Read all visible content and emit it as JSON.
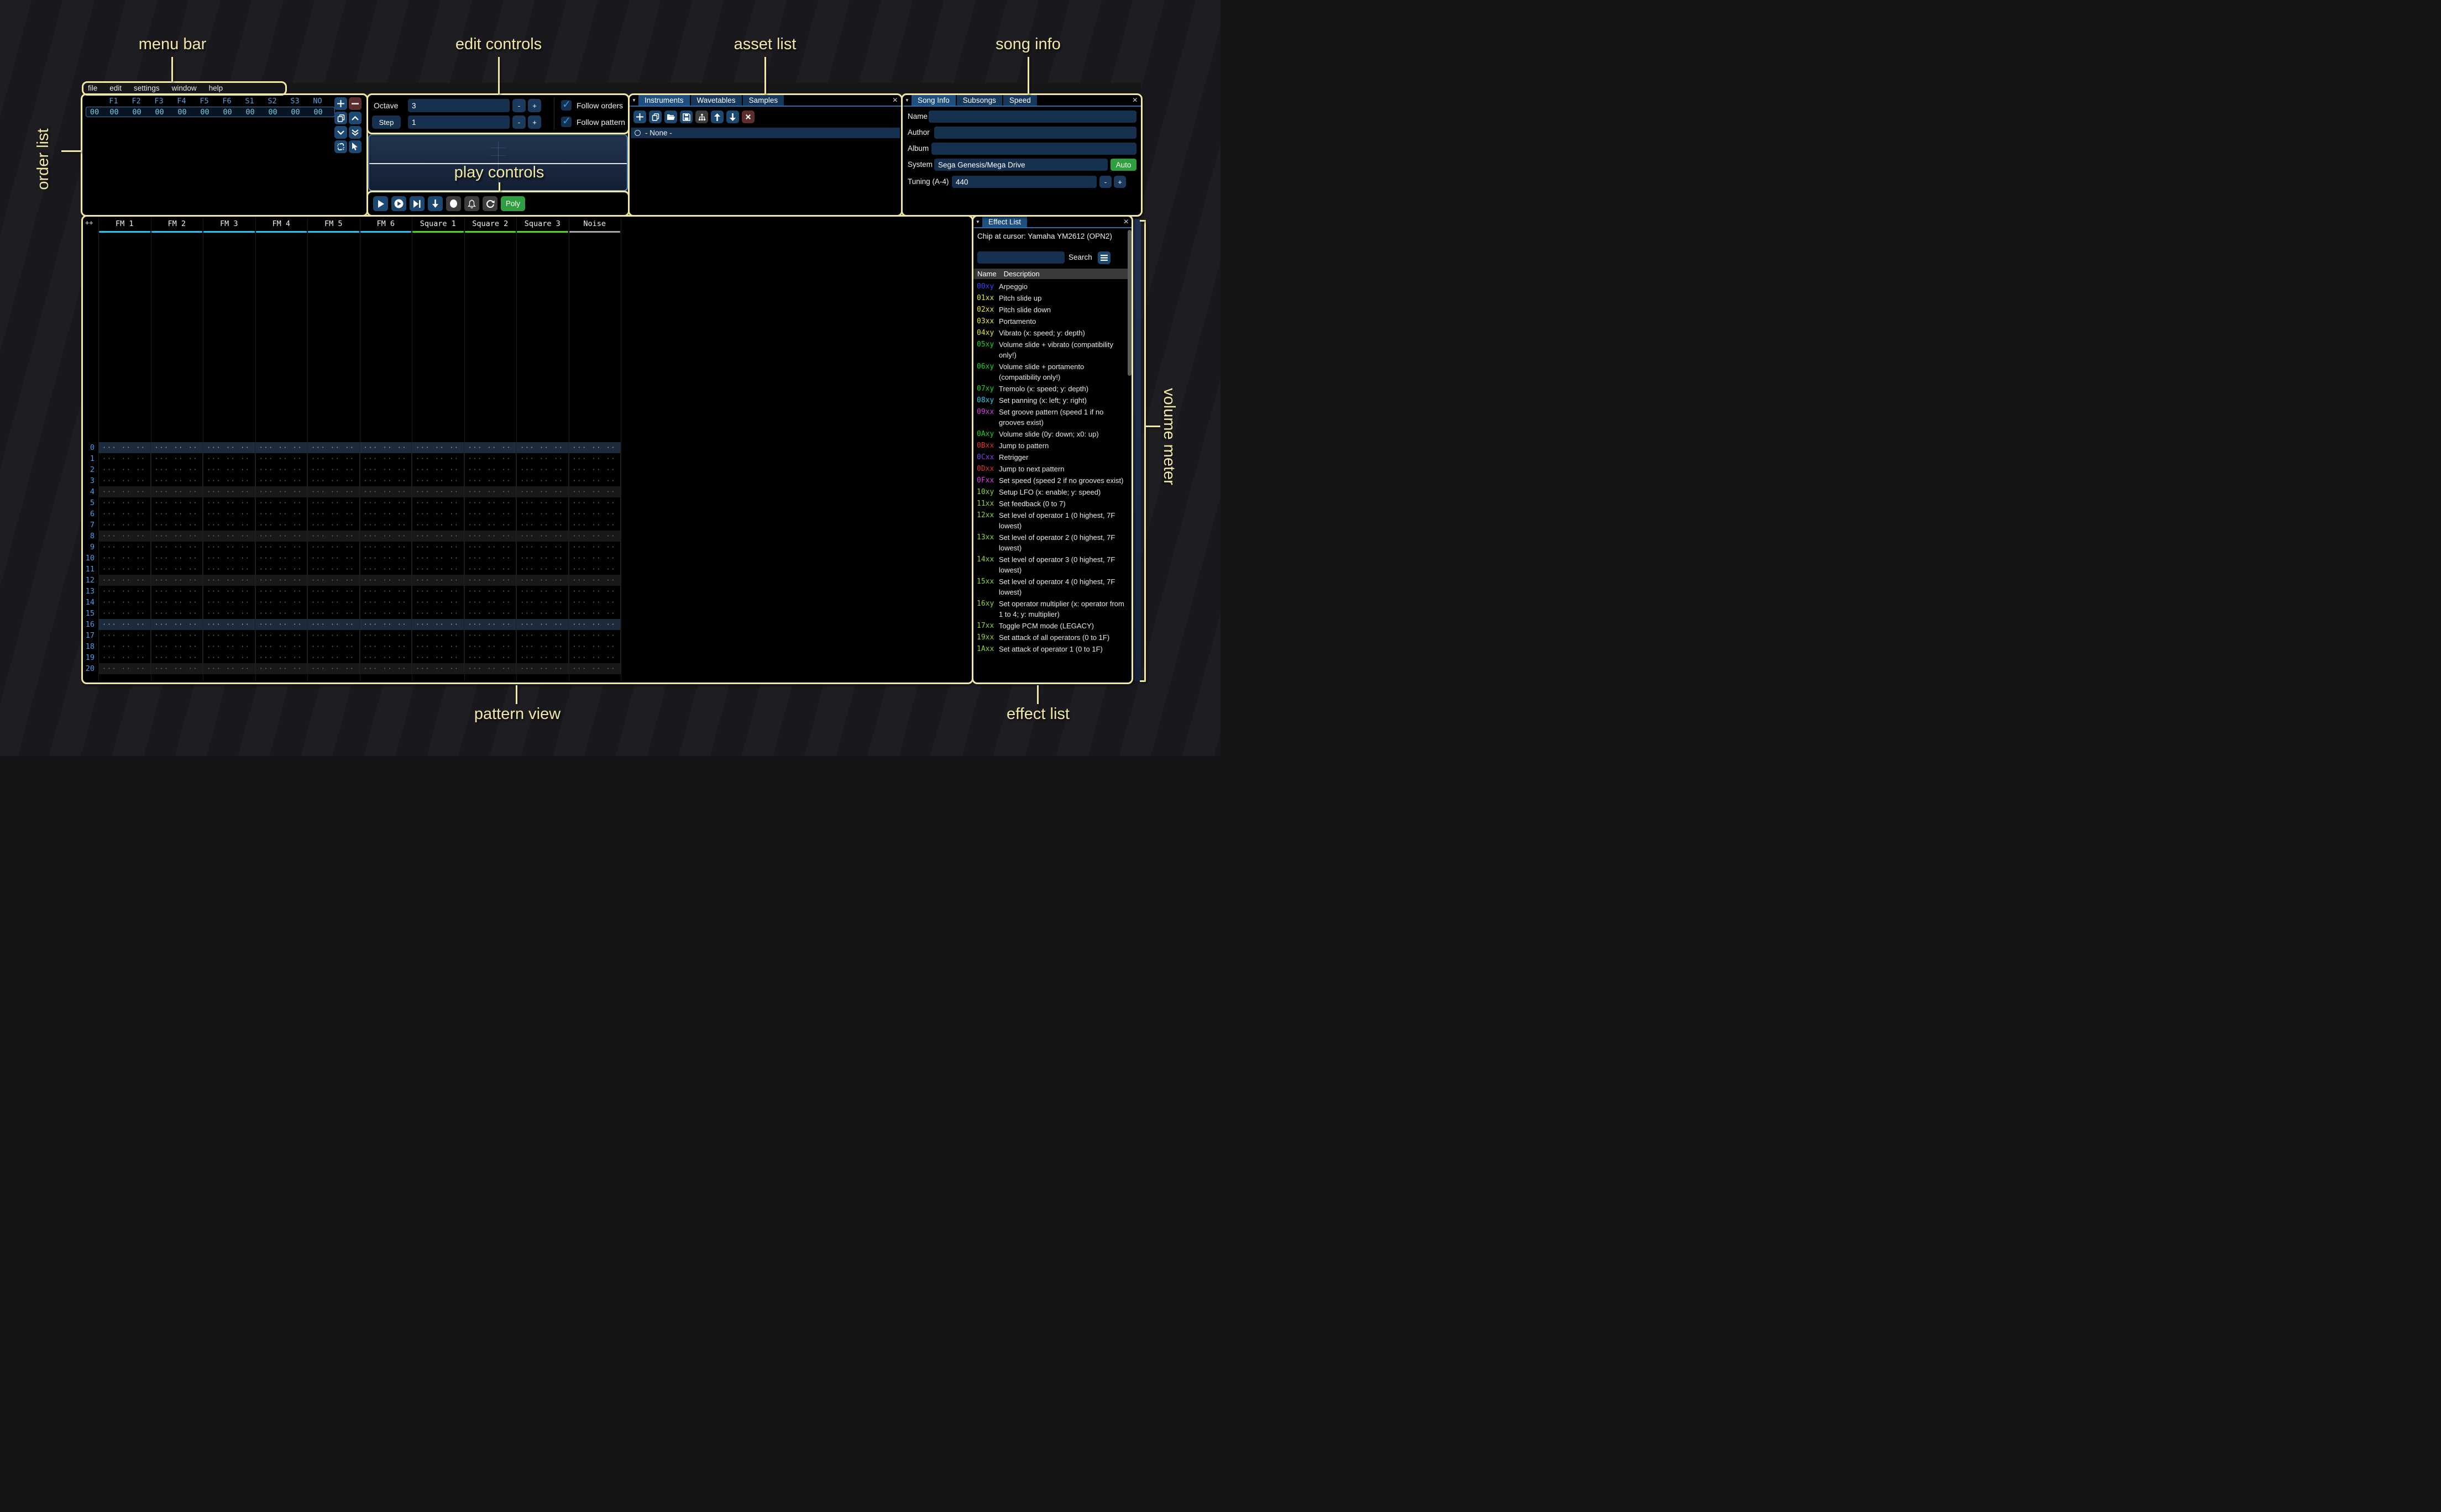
{
  "annotations": {
    "menu_bar": "menu bar",
    "edit_controls": "edit controls",
    "asset_list": "asset list",
    "song_info": "song info",
    "order_list": "order list",
    "play_controls": "play controls",
    "pattern_view": "pattern view",
    "volume_meter": "volume meter",
    "effect_list": "effect list"
  },
  "menu": {
    "items": [
      "file",
      "edit",
      "settings",
      "window",
      "help"
    ]
  },
  "order_list": {
    "columns": [
      "F1",
      "F2",
      "F3",
      "F4",
      "F5",
      "F6",
      "S1",
      "S2",
      "S3",
      "NO"
    ],
    "row_index": "00",
    "row_values": [
      "00",
      "00",
      "00",
      "00",
      "00",
      "00",
      "00",
      "00",
      "00",
      "00"
    ]
  },
  "edit_controls": {
    "octave_label": "Octave",
    "octave_value": "3",
    "step_label": "Step",
    "step_value": "1",
    "minus": "-",
    "plus": "+",
    "follow_orders": "Follow orders",
    "follow_pattern": "Follow pattern"
  },
  "play_controls": {
    "poly_label": "Poly"
  },
  "asset_list": {
    "tabs": [
      "Instruments",
      "Wavetables",
      "Samples"
    ],
    "active_tab": "Instruments",
    "selected_item": "- None -"
  },
  "song_info": {
    "tabs": [
      "Song Info",
      "Subsongs",
      "Speed"
    ],
    "active_tab": "Song Info",
    "name_label": "Name",
    "name_value": "",
    "author_label": "Author",
    "author_value": "",
    "album_label": "Album",
    "album_value": "",
    "system_label": "System",
    "system_value": "Sega Genesis/Mega Drive",
    "auto_label": "Auto",
    "tuning_label": "Tuning (A-4)",
    "tuning_value": "440",
    "minus": "-",
    "plus": "+"
  },
  "pattern_view": {
    "corner": "++",
    "channels": [
      {
        "name": "FM 1",
        "type": "fm"
      },
      {
        "name": "FM 2",
        "type": "fm"
      },
      {
        "name": "FM 3",
        "type": "fm"
      },
      {
        "name": "FM 4",
        "type": "fm"
      },
      {
        "name": "FM 5",
        "type": "fm"
      },
      {
        "name": "FM 6",
        "type": "fm"
      },
      {
        "name": "Square 1",
        "type": "square"
      },
      {
        "name": "Square 2",
        "type": "square"
      },
      {
        "name": "Square 3",
        "type": "square"
      },
      {
        "name": "Noise",
        "type": "noise"
      }
    ],
    "row_count": 21,
    "empty_cell": "··· ·· ·· ····"
  },
  "effect_list": {
    "tab": "Effect List",
    "chip_text": "Chip at cursor: Yamaha YM2612 (OPN2)",
    "search_placeholder": "",
    "search_label": "Search",
    "name_header": "Name",
    "description_header": "Description",
    "effects": [
      {
        "code": "00xy",
        "color": "#3e3eff",
        "desc": "Arpeggio"
      },
      {
        "code": "01xx",
        "color": "#e6e929",
        "desc": "Pitch slide up"
      },
      {
        "code": "02xx",
        "color": "#e6e929",
        "desc": "Pitch slide down"
      },
      {
        "code": "03xx",
        "color": "#e6e929",
        "desc": "Portamento"
      },
      {
        "code": "04xy",
        "color": "#e6e929",
        "desc": "Vibrato (x: speed; y: depth)"
      },
      {
        "code": "05xy",
        "color": "#12d626",
        "desc": "Volume slide + vibrato (compatibility only!)"
      },
      {
        "code": "06xy",
        "color": "#12d626",
        "desc": "Volume slide + portamento (compatibility only!)"
      },
      {
        "code": "07xy",
        "color": "#12d626",
        "desc": "Tremolo (x: speed; y: depth)"
      },
      {
        "code": "08xy",
        "color": "#1fd2e6",
        "desc": "Set panning (x: left; y: right)"
      },
      {
        "code": "09xx",
        "color": "#d93fe0",
        "desc": "Set groove pattern (speed 1 if no grooves exist)"
      },
      {
        "code": "0Axy",
        "color": "#12d626",
        "desc": "Volume slide (0y: down; x0: up)"
      },
      {
        "code": "0Bxx",
        "color": "#e23232",
        "desc": "Jump to pattern"
      },
      {
        "code": "0Cxx",
        "color": "#7e3fe8",
        "desc": "Retrigger"
      },
      {
        "code": "0Dxx",
        "color": "#e23232",
        "desc": "Jump to next pattern"
      },
      {
        "code": "0Fxx",
        "color": "#d93fe0",
        "desc": "Set speed (speed 2 if no grooves exist)"
      },
      {
        "code": "10xy",
        "color": "#8fd32f",
        "desc": "Setup LFO (x: enable; y: speed)"
      },
      {
        "code": "11xx",
        "color": "#8fd32f",
        "desc": "Set feedback (0 to 7)"
      },
      {
        "code": "12xx",
        "color": "#8fd32f",
        "desc": "Set level of operator 1 (0 highest, 7F lowest)"
      },
      {
        "code": "13xx",
        "color": "#8fd32f",
        "desc": "Set level of operator 2 (0 highest, 7F lowest)"
      },
      {
        "code": "14xx",
        "color": "#8fd32f",
        "desc": "Set level of operator 3 (0 highest, 7F lowest)"
      },
      {
        "code": "15xx",
        "color": "#8fd32f",
        "desc": "Set level of operator 4 (0 highest, 7F lowest)"
      },
      {
        "code": "16xy",
        "color": "#8fd32f",
        "desc": "Set operator multiplier (x: operator from 1 to 4; y: multiplier)"
      },
      {
        "code": "17xx",
        "color": "#8fd32f",
        "desc": "Toggle PCM mode (LEGACY)"
      },
      {
        "code": "19xx",
        "color": "#8fd32f",
        "desc": "Set attack of all operators (0 to 1F)"
      },
      {
        "code": "1Axx",
        "color": "#8fd32f",
        "desc": "Set attack of operator 1 (0 to 1F)"
      }
    ]
  },
  "colors": {
    "annotation": "#f2e7a3",
    "fm": "#27c3ea",
    "square": "#54d41e",
    "noise": "#a8a8a8",
    "tab_active": "#1d4f80",
    "button_blue": "#1d4872",
    "button_red": "#5e2d2d",
    "button_green": "#2e9e3e",
    "input_navy": "#16304f",
    "row_number_blue": "#4f9fe8"
  }
}
